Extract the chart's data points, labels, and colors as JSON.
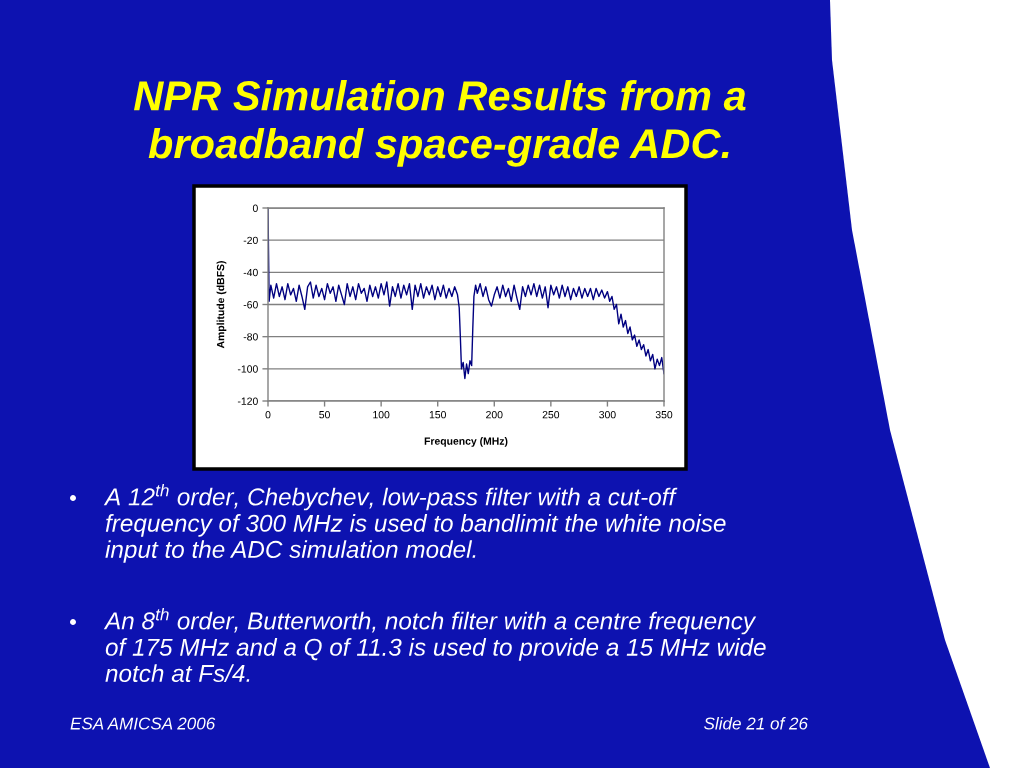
{
  "chart_data": {
    "type": "line",
    "title": "NPR Simulation Results from a\nbroadband space-grade ADC.",
    "xlabel": "Frequency (MHz)",
    "ylabel": "Amplitude (dBFS)",
    "annotations": [
      "A 12$^{th}$ order, Chebychev, low-pass filter with a cut-off frequency of 300 MHz is used to bandlimit the white noise input to the ADC simulation model.",
      "An 8$^{th}$ order, Butterworth, notch filter with a centre frequency of 175 MHz and a Q of 11.3 is used to provide a 15 MHz wide notch at Fs/4.",
      "ESA AMICSA 2006",
      "Slide 21 of 26"
    ],
    "x": [
      0,
      1,
      2.5,
      5,
      7.5,
      10,
      12.5,
      15,
      17.5,
      20,
      22.5,
      25,
      27.5,
      30,
      32.5,
      35,
      37.5,
      40,
      42.5,
      45,
      47.5,
      50,
      52.5,
      55,
      57.5,
      60,
      62.5,
      65,
      67.5,
      70,
      72.5,
      75,
      77.5,
      80,
      82.5,
      85,
      87.5,
      90,
      92.5,
      95,
      97.5,
      100,
      102.5,
      105,
      107.5,
      110,
      112.5,
      115,
      117.5,
      120,
      122.5,
      125,
      127.5,
      130,
      132.5,
      135,
      137.5,
      140,
      142.5,
      145,
      147.5,
      150,
      152.5,
      155,
      157.5,
      160,
      162.5,
      165,
      167.5,
      169,
      170,
      171,
      172.5,
      174,
      175.5,
      177,
      178.5,
      180,
      181,
      182,
      183.5,
      185,
      187.5,
      190,
      192.5,
      195,
      197.5,
      200,
      202.5,
      205,
      207.5,
      210,
      212.5,
      215,
      217.5,
      220,
      222.5,
      225,
      227.5,
      230,
      232.5,
      235,
      237.5,
      240,
      242.5,
      245,
      247.5,
      250,
      252.5,
      255,
      257.5,
      260,
      262.5,
      265,
      267.5,
      270,
      272.5,
      275,
      277.5,
      280,
      282.5,
      285,
      287.5,
      290,
      292.5,
      295,
      297.5,
      300,
      302,
      304,
      306,
      308,
      310,
      312,
      314,
      316,
      318,
      320,
      322,
      324,
      326,
      328,
      330,
      332,
      334,
      336,
      338,
      340,
      342,
      344,
      346,
      348,
      350
    ],
    "values": [
      0,
      -58,
      -48,
      -56,
      -47,
      -55,
      -49,
      -57,
      -47,
      -54,
      -50,
      -58,
      -48,
      -55,
      -63,
      -49,
      -46,
      -56,
      -48,
      -55,
      -50,
      -57,
      -47,
      -53,
      -49,
      -58,
      -48,
      -54,
      -60,
      -47,
      -55,
      -49,
      -57,
      -47,
      -53,
      -50,
      -58,
      -48,
      -55,
      -49,
      -56,
      -47,
      -54,
      -46,
      -61,
      -49,
      -55,
      -47,
      -56,
      -48,
      -54,
      -47,
      -63,
      -48,
      -55,
      -47,
      -56,
      -49,
      -54,
      -48,
      -57,
      -49,
      -55,
      -48,
      -56,
      -50,
      -55,
      -49,
      -54,
      -62,
      -80,
      -100,
      -96,
      -106,
      -97,
      -103,
      -95,
      -98,
      -75,
      -55,
      -48,
      -53,
      -47,
      -55,
      -49,
      -57,
      -61,
      -54,
      -49,
      -56,
      -48,
      -55,
      -50,
      -58,
      -48,
      -56,
      -63,
      -49,
      -55,
      -48,
      -54,
      -47,
      -55,
      -48,
      -56,
      -49,
      -62,
      -48,
      -54,
      -49,
      -56,
      -48,
      -55,
      -49,
      -57,
      -50,
      -55,
      -49,
      -56,
      -50,
      -55,
      -50,
      -57,
      -50,
      -55,
      -51,
      -56,
      -52,
      -58,
      -55,
      -63,
      -60,
      -72,
      -66,
      -74,
      -70,
      -78,
      -74,
      -82,
      -79,
      -86,
      -82,
      -88,
      -85,
      -92,
      -88,
      -95,
      -91,
      -100,
      -94,
      -98,
      -93,
      -103
    ],
    "color": "#000080",
    "xlim": [
      0,
      350
    ],
    "ylim": [
      -120,
      0
    ],
    "xticks": [
      0,
      50,
      100,
      150,
      200,
      250,
      300,
      350
    ],
    "yticks": [
      -120,
      -100,
      -80,
      -60,
      -40,
      -20,
      0
    ],
    "grid": "y"
  }
}
